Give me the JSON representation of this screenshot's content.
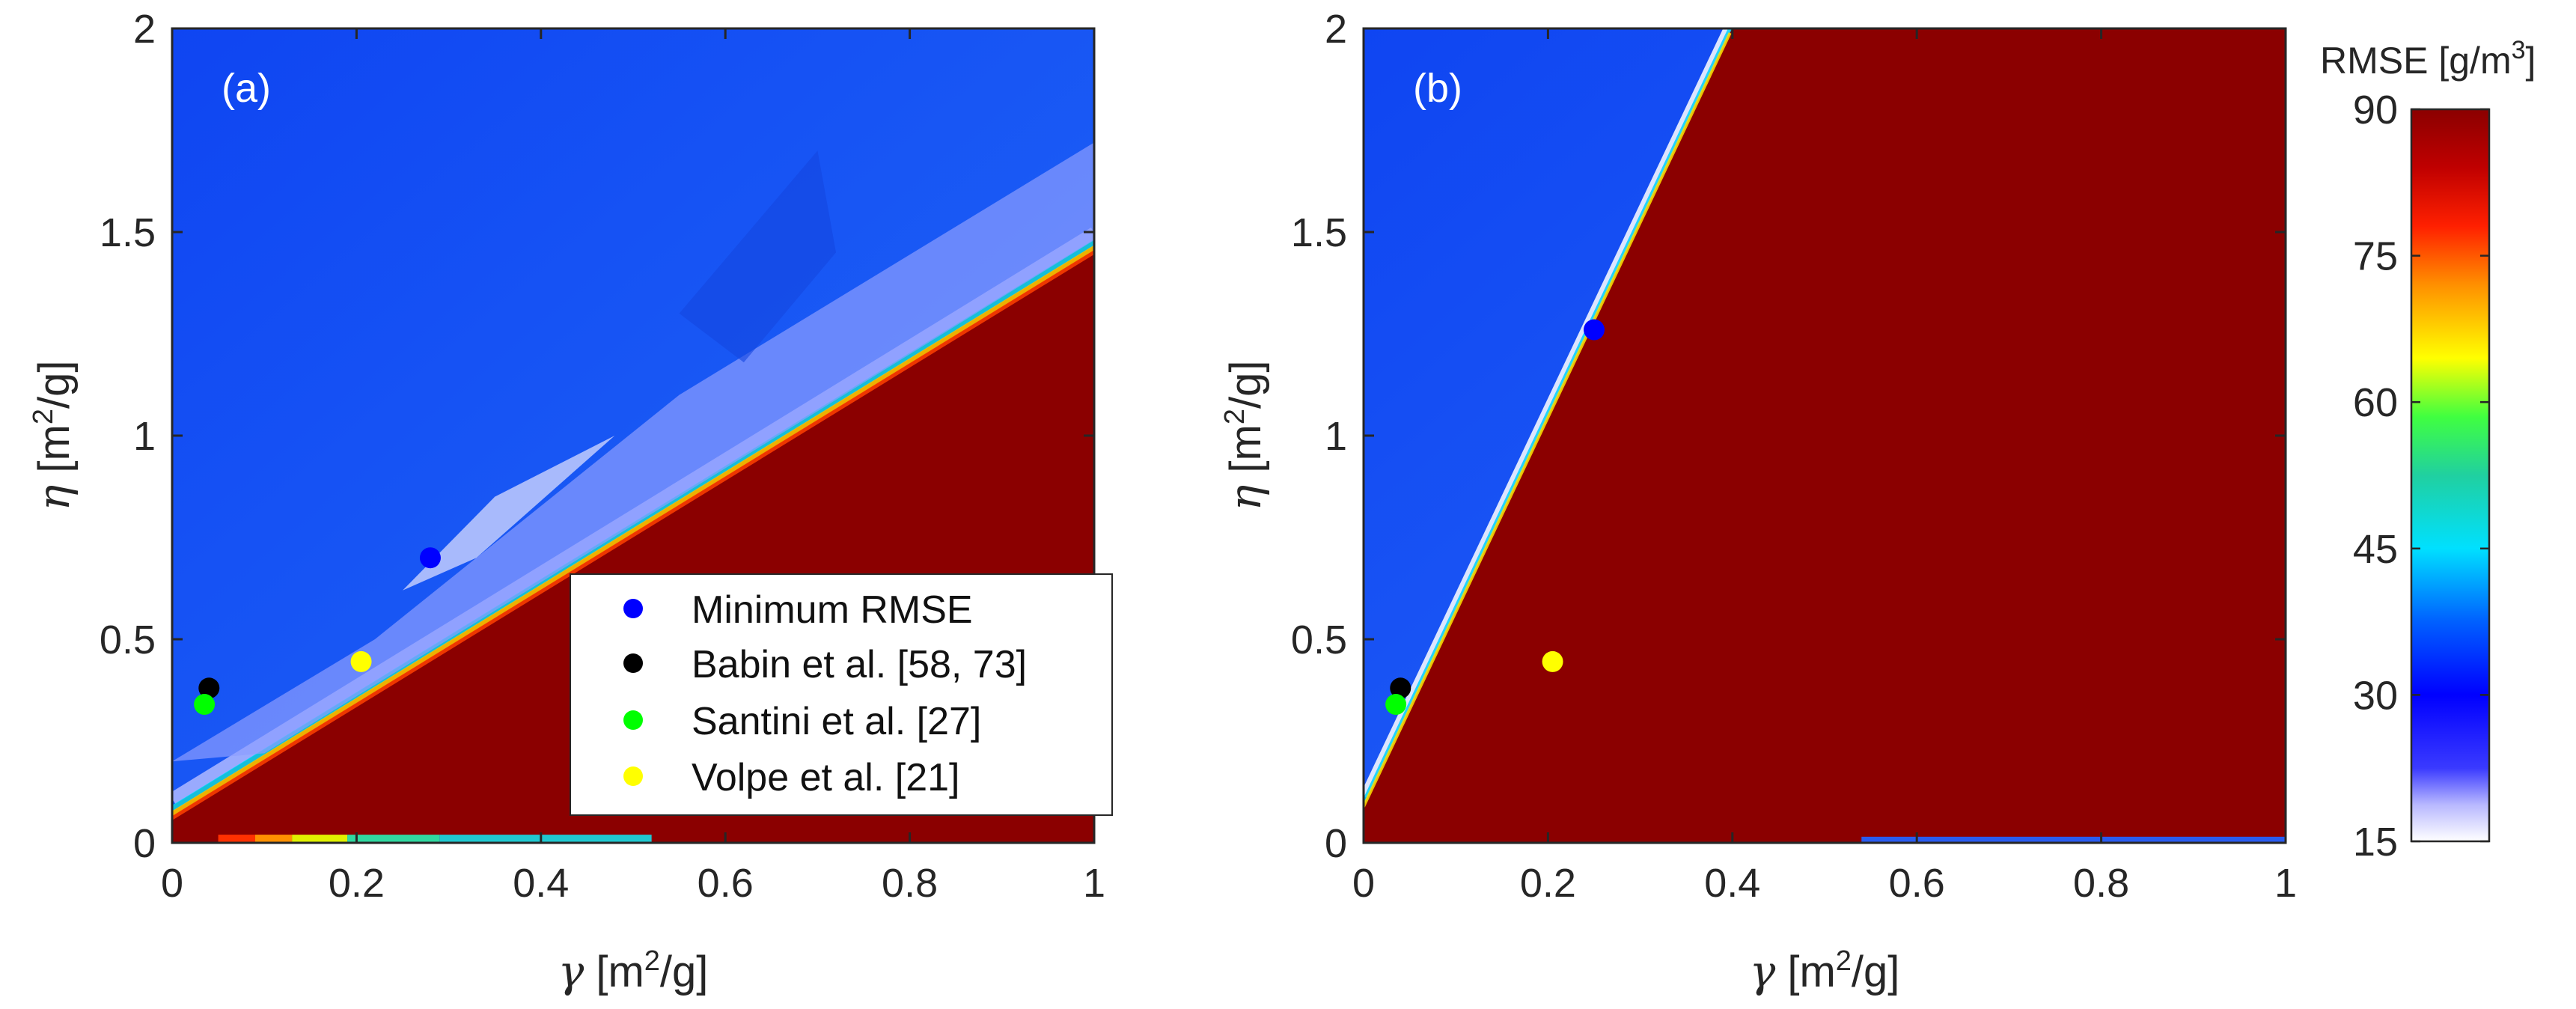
{
  "colors": {
    "high_region": "#8b0000",
    "low_region": "#1a56f0",
    "axis": "#262626",
    "minimum_marker": "#0000ff",
    "babin_marker": "#000000",
    "santini_marker": "#00ff00",
    "volpe_marker": "#ffff00"
  },
  "chart_data": [
    {
      "type": "heatmap",
      "panel_label": "(a)",
      "xlabel": {
        "symbol": "γ",
        "text": " [m",
        "sup": "2",
        "tail": "/g]"
      },
      "ylabel": {
        "symbol": "η",
        "text": " [m",
        "sup": "2",
        "tail": "/g]"
      },
      "xlim": [
        0,
        1
      ],
      "ylim": [
        0,
        2
      ],
      "xticks": [
        0,
        0.2,
        0.4,
        0.6,
        0.8,
        1
      ],
      "xtick_labels": [
        "0",
        "0.2",
        "0.4",
        "0.6",
        "0.8",
        "1"
      ],
      "yticks": [
        0,
        0.5,
        1,
        1.5,
        2
      ],
      "ytick_labels": [
        "0",
        "0.5",
        "1",
        "1.5",
        "2"
      ],
      "saturation_boundary": {
        "eta_at_gamma_0": 0.09,
        "slope": 1.39
      },
      "points": [
        {
          "name": "Minimum RMSE",
          "gamma": 0.28,
          "eta": 0.7,
          "color": "#0000ff"
        },
        {
          "name": "Babin et al. [58, 73]",
          "gamma": 0.04,
          "eta": 0.38,
          "color": "#000000"
        },
        {
          "name": "Santini et al. [27]",
          "gamma": 0.035,
          "eta": 0.34,
          "color": "#00ff00"
        },
        {
          "name": "Volpe et al. [21]",
          "gamma": 0.205,
          "eta": 0.445,
          "color": "#ffff00"
        }
      ],
      "legend": {
        "position": "bottom-right",
        "entries": [
          "Minimum RMSE",
          "Babin et al. [58, 73]",
          "Santini et al. [27]",
          "Volpe et al. [21]"
        ]
      }
    },
    {
      "type": "heatmap",
      "panel_label": "(b)",
      "xlabel": {
        "symbol": "γ",
        "text": " [m",
        "sup": "2",
        "tail": "/g]"
      },
      "ylabel": {
        "symbol": "η",
        "text": " [m",
        "sup": "2",
        "tail": "/g]"
      },
      "xlim": [
        0,
        1
      ],
      "ylim": [
        0,
        2
      ],
      "xticks": [
        0,
        0.2,
        0.4,
        0.6,
        0.8,
        1
      ],
      "xtick_labels": [
        "0",
        "0.2",
        "0.4",
        "0.6",
        "0.8",
        "1"
      ],
      "yticks": [
        0,
        0.5,
        1,
        1.5,
        2
      ],
      "ytick_labels": [
        "0",
        "0.5",
        "1",
        "1.5",
        "2"
      ],
      "saturation_boundary": {
        "eta_at_gamma_0": 0.1,
        "slope": 4.78
      },
      "points": [
        {
          "name": "Minimum RMSE",
          "gamma": 0.25,
          "eta": 1.26,
          "color": "#0000ff"
        },
        {
          "name": "Babin et al. [58, 73]",
          "gamma": 0.04,
          "eta": 0.38,
          "color": "#000000"
        },
        {
          "name": "Santini et al. [27]",
          "gamma": 0.035,
          "eta": 0.34,
          "color": "#00ff00"
        },
        {
          "name": "Volpe et al. [21]",
          "gamma": 0.205,
          "eta": 0.445,
          "color": "#ffff00"
        }
      ]
    }
  ],
  "colorbar": {
    "title": "RMSE [g/m",
    "title_sup": "3",
    "title_tail": "]",
    "range": [
      15,
      90
    ],
    "ticks": [
      15,
      30,
      45,
      60,
      75,
      90
    ],
    "tick_labels": [
      "15",
      "30",
      "45",
      "60",
      "75",
      "90"
    ],
    "colormap": "jet with white-to-blue low end"
  }
}
